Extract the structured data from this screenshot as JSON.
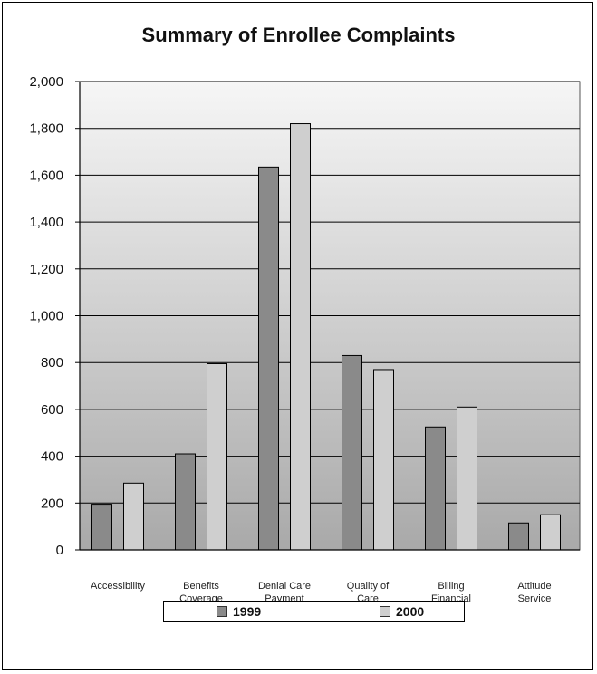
{
  "chart_data": {
    "type": "bar",
    "title": "Summary of Enrollee Complaints",
    "categories": [
      [
        "Accessibility"
      ],
      [
        "Benefits",
        "Coverage"
      ],
      [
        "Denial Care",
        "Payment"
      ],
      [
        "Quality of",
        "Care"
      ],
      [
        "Billing",
        "Financial"
      ],
      [
        "Attitude",
        "Service"
      ]
    ],
    "series": [
      {
        "name": "1999",
        "values": [
          195,
          410,
          1635,
          830,
          525,
          115
        ],
        "color": "#8a8a8a"
      },
      {
        "name": "2000",
        "values": [
          285,
          795,
          1820,
          770,
          610,
          150
        ],
        "color": "#cfcfcf"
      }
    ],
    "yticks": [
      "0",
      "200",
      "400",
      "600",
      "800",
      "1,000",
      "1,200",
      "1,400",
      "1,600",
      "1,800",
      "2,000"
    ],
    "ylim": [
      0,
      2000
    ],
    "grid": true,
    "legend_position": "bottom"
  }
}
